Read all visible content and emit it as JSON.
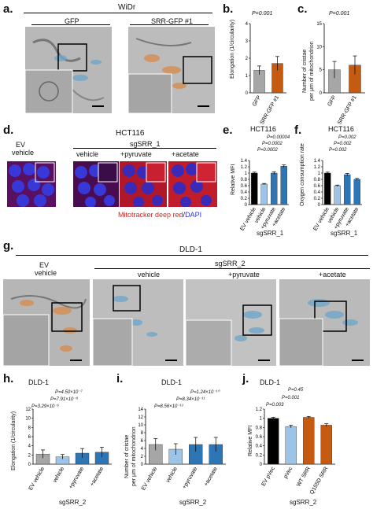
{
  "panel_a": {
    "label": "a.",
    "cell_line": "WiDr",
    "cond1": "GFP",
    "cond2": "SRR-GFP #1"
  },
  "panel_b": {
    "label": "b.",
    "pvalue": "P=0.001",
    "ylabel": "Elongation (1/circularity)"
  },
  "panel_c": {
    "label": "c.",
    "pvalue": "P=0.001",
    "ylabel_line1": "Number of cristae",
    "ylabel_line2": "per μm of mitochondrion"
  },
  "panel_d": {
    "label": "d.",
    "cell_line": "HCT116",
    "group_label": "sgSRR_1",
    "ev_line1": "EV",
    "ev_line2": "vehicle",
    "conds": [
      "vehicle",
      "+pyruvate",
      "+acetate"
    ],
    "stain_red": "Mitotracker deep red",
    "stain_sep": "/",
    "stain_blue": "DAPI"
  },
  "panel_e": {
    "label": "e.",
    "cell_line": "HCT116",
    "pvalues": [
      "P=0.00004",
      "P=0.0002",
      "P=0.0002"
    ]
  },
  "panel_f": {
    "label": "f.",
    "cell_line": "HCT116",
    "pvalues": [
      "P=0.002",
      "P=0.002",
      "P=0.002"
    ]
  },
  "panel_g": {
    "label": "g.",
    "cell_line": "DLD-1",
    "group_label": "sgSRR_2",
    "ev_line1": "EV",
    "ev_line2": "vehicle",
    "conds": [
      "vehicle",
      "+pyruvate",
      "+acetate"
    ]
  },
  "panel_h": {
    "label": "h.",
    "cell_line": "DLD-1",
    "pvalues": [
      "P=4.50×10⁻⁷",
      "P=7.91×10⁻⁸",
      "P=3.29×10⁻⁶"
    ]
  },
  "panel_i": {
    "label": "i.",
    "cell_line": "DLD-1",
    "pvalues": [
      "P=1.24×10⁻¹⁰",
      "P=8.34×10⁻¹¹",
      "P=8.56×10⁻¹³"
    ]
  },
  "panel_j": {
    "label": "j.",
    "cell_line": "DLD-1",
    "pvalues": [
      "P=0.45",
      "P=0.001",
      "P=0.003"
    ],
    "ylabel": "Relative MFI",
    "group_label": "sgSRR_2"
  },
  "chart_data": [
    {
      "id": "b",
      "type": "bar",
      "categories": [
        "GFP",
        "SRR-GFP #1"
      ],
      "values": [
        1.3,
        1.7
      ],
      "errors": [
        0.25,
        0.4
      ],
      "colors": [
        "#a6a6a6",
        "#c55a11"
      ],
      "ylabel": "Elongation (1/circularity)",
      "ylim": [
        0,
        4
      ],
      "yticks": [
        0,
        1,
        2,
        3,
        4
      ]
    },
    {
      "id": "c",
      "type": "bar",
      "categories": [
        "GFP",
        "SRR-GFP #1"
      ],
      "values": [
        5.0,
        6.0
      ],
      "errors": [
        1.8,
        2.0
      ],
      "colors": [
        "#a6a6a6",
        "#c55a11"
      ],
      "ylabel": "Number of cristae per μm of mitochondrion",
      "ylim": [
        0,
        15
      ],
      "yticks": [
        0,
        5,
        10,
        15
      ]
    },
    {
      "id": "e",
      "type": "bar",
      "categories": [
        "EV vehicle",
        "vehicle",
        "+pyruvate",
        "+acetate"
      ],
      "values": [
        1.0,
        0.65,
        1.0,
        1.22
      ],
      "errors": [
        0.03,
        0.02,
        0.04,
        0.04
      ],
      "colors": [
        "#000000",
        "#9dc3e6",
        "#2e75b6",
        "#2e75b6"
      ],
      "ylabel": "Relative MFI",
      "xgroup": "sgSRR_1",
      "ylim": [
        0,
        1.4
      ],
      "yticks": [
        0,
        0.2,
        0.4,
        0.6,
        0.8,
        1,
        1.2,
        1.4
      ]
    },
    {
      "id": "f",
      "type": "bar",
      "categories": [
        "EV vehicle",
        "vehicle",
        "+pyruvate",
        "+acetate"
      ],
      "values": [
        1.0,
        0.6,
        0.95,
        0.8
      ],
      "errors": [
        0.03,
        0.02,
        0.04,
        0.03
      ],
      "colors": [
        "#000000",
        "#9dc3e6",
        "#2e75b6",
        "#2e75b6"
      ],
      "ylabel": "Oxygen consumption rate",
      "xgroup": "sgSRR_1",
      "ylim": [
        0,
        1.4
      ],
      "yticks": [
        0,
        0.2,
        0.4,
        0.6,
        0.8,
        1,
        1.2,
        1.4
      ]
    },
    {
      "id": "h",
      "type": "bar",
      "categories": [
        "EV vehicle",
        "vehicle",
        "+pyruvate",
        "+acetate"
      ],
      "values": [
        2.2,
        1.6,
        2.4,
        2.6
      ],
      "errors": [
        0.9,
        0.5,
        1.0,
        1.1
      ],
      "colors": [
        "#a6a6a6",
        "#9dc3e6",
        "#2e75b6",
        "#2e75b6"
      ],
      "ylabel": "Elongation (1/circularity)",
      "xgroup": "sgSRR_2",
      "ylim": [
        0,
        12
      ],
      "yticks": [
        0,
        2,
        4,
        6,
        8,
        10,
        12
      ]
    },
    {
      "id": "i",
      "type": "bar",
      "categories": [
        "EV vehicle",
        "vehicle",
        "+pyruvate",
        "+acetate"
      ],
      "values": [
        5.0,
        3.8,
        5.0,
        5.0
      ],
      "errors": [
        1.5,
        1.4,
        1.8,
        1.8
      ],
      "colors": [
        "#a6a6a6",
        "#9dc3e6",
        "#2e75b6",
        "#2e75b6"
      ],
      "ylabel": "Number of cristae per μm of mitochondrion",
      "xgroup": "sgSRR_2",
      "ylim": [
        0,
        14
      ],
      "yticks": [
        0,
        2,
        4,
        6,
        8,
        10,
        12,
        14
      ]
    },
    {
      "id": "j",
      "type": "bar",
      "categories": [
        "EV pVec",
        "pVec",
        "WT SRR",
        "Q155D SRR"
      ],
      "values": [
        1.0,
        0.82,
        1.02,
        0.85
      ],
      "errors": [
        0.02,
        0.03,
        0.02,
        0.03
      ],
      "colors": [
        "#000000",
        "#9dc3e6",
        "#c55a11",
        "#c55a11"
      ],
      "ylabel": "Relative MFI",
      "xgroup": "sgSRR_2",
      "ylim": [
        0,
        1.2
      ],
      "yticks": [
        0,
        0.2,
        0.4,
        0.6,
        0.8,
        1,
        1.2
      ]
    }
  ]
}
